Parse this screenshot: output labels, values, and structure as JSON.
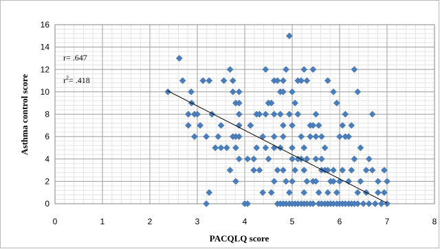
{
  "chart_data": {
    "type": "scatter",
    "xlabel": "PACQLQ score",
    "ylabel": "Asthma control score",
    "xlim": [
      0,
      8
    ],
    "ylim": [
      0,
      16
    ],
    "x_ticks": [
      "0",
      "1",
      "2",
      "3",
      "4",
      "5",
      "6",
      "7",
      "8"
    ],
    "y_ticks": [
      "0",
      "2",
      "4",
      "6",
      "8",
      "10",
      "12",
      "14",
      "16"
    ],
    "grid": true,
    "legend": "none",
    "annotations": {
      "r": "r= .647",
      "r2_prefix": "r",
      "r2_sup": "2",
      "r2_suffix": "= .418"
    },
    "marker_color": "#4a7ebb",
    "trendline": {
      "x": [
        2.37,
        7.0
      ],
      "y": [
        10.1,
        0.05
      ]
    },
    "points": [
      [
        2.38,
        10
      ],
      [
        2.62,
        13
      ],
      [
        2.69,
        11
      ],
      [
        2.81,
        7
      ],
      [
        2.81,
        8
      ],
      [
        2.87,
        10
      ],
      [
        2.88,
        9
      ],
      [
        2.94,
        8
      ],
      [
        2.94,
        6
      ],
      [
        3.0,
        8
      ],
      [
        3.06,
        7
      ],
      [
        3.12,
        11
      ],
      [
        3.19,
        6
      ],
      [
        3.19,
        0
      ],
      [
        3.25,
        1
      ],
      [
        3.25,
        11
      ],
      [
        3.31,
        8
      ],
      [
        3.31,
        8
      ],
      [
        3.38,
        5
      ],
      [
        3.44,
        6
      ],
      [
        3.5,
        7
      ],
      [
        3.5,
        5
      ],
      [
        3.56,
        11
      ],
      [
        3.62,
        5
      ],
      [
        3.69,
        12
      ],
      [
        3.69,
        3
      ],
      [
        3.75,
        6
      ],
      [
        3.75,
        10
      ],
      [
        3.75,
        11
      ],
      [
        3.81,
        2
      ],
      [
        3.81,
        9
      ],
      [
        3.81,
        6
      ],
      [
        3.81,
        5
      ],
      [
        3.88,
        9
      ],
      [
        3.88,
        10
      ],
      [
        3.88,
        4
      ],
      [
        3.88,
        8
      ],
      [
        3.88,
        7
      ],
      [
        3.88,
        6
      ],
      [
        4.0,
        0
      ],
      [
        4.06,
        0
      ],
      [
        4.06,
        4
      ],
      [
        4.12,
        7
      ],
      [
        4.12,
        7
      ],
      [
        4.19,
        4
      ],
      [
        4.19,
        3
      ],
      [
        4.25,
        5
      ],
      [
        4.25,
        8
      ],
      [
        4.31,
        3
      ],
      [
        4.31,
        8
      ],
      [
        4.38,
        6
      ],
      [
        4.38,
        1
      ],
      [
        4.44,
        8
      ],
      [
        4.44,
        12
      ],
      [
        4.44,
        5
      ],
      [
        4.5,
        9
      ],
      [
        4.5,
        4
      ],
      [
        4.56,
        1
      ],
      [
        4.56,
        9
      ],
      [
        4.62,
        11
      ],
      [
        4.62,
        8
      ],
      [
        4.62,
        2
      ],
      [
        4.62,
        6
      ],
      [
        4.62,
        5
      ],
      [
        4.69,
        11
      ],
      [
        4.69,
        3
      ],
      [
        4.69,
        0
      ],
      [
        4.75,
        10
      ],
      [
        4.75,
        8
      ],
      [
        4.75,
        5
      ],
      [
        4.75,
        0
      ],
      [
        4.81,
        11
      ],
      [
        4.81,
        10
      ],
      [
        4.81,
        7
      ],
      [
        4.81,
        6
      ],
      [
        4.81,
        3
      ],
      [
        4.81,
        0
      ],
      [
        4.87,
        12
      ],
      [
        4.87,
        2
      ],
      [
        4.87,
        0
      ],
      [
        4.94,
        15
      ],
      [
        4.94,
        8
      ],
      [
        4.94,
        1
      ],
      [
        4.94,
        0
      ],
      [
        5.0,
        10
      ],
      [
        5.0,
        7
      ],
      [
        5.0,
        5
      ],
      [
        5.0,
        4
      ],
      [
        5.0,
        2
      ],
      [
        5.0,
        0
      ],
      [
        5.06,
        9
      ],
      [
        5.06,
        3
      ],
      [
        5.06,
        0
      ],
      [
        5.12,
        11
      ],
      [
        5.12,
        8
      ],
      [
        5.12,
        4
      ],
      [
        5.12,
        0
      ],
      [
        5.19,
        11
      ],
      [
        5.19,
        6
      ],
      [
        5.19,
        4
      ],
      [
        5.19,
        0
      ],
      [
        5.25,
        12
      ],
      [
        5.25,
        5
      ],
      [
        5.25,
        3
      ],
      [
        5.25,
        1
      ],
      [
        5.25,
        0
      ],
      [
        5.31,
        11
      ],
      [
        5.31,
        4
      ],
      [
        5.31,
        2
      ],
      [
        5.31,
        0
      ],
      [
        5.38,
        7
      ],
      [
        5.38,
        6
      ],
      [
        5.38,
        0
      ],
      [
        5.44,
        12
      ],
      [
        5.44,
        7
      ],
      [
        5.44,
        2
      ],
      [
        5.44,
        0
      ],
      [
        5.5,
        8
      ],
      [
        5.5,
        6
      ],
      [
        5.5,
        4
      ],
      [
        5.5,
        2
      ],
      [
        5.56,
        7
      ],
      [
        5.56,
        1
      ],
      [
        5.56,
        0
      ],
      [
        5.62,
        6
      ],
      [
        5.62,
        4
      ],
      [
        5.62,
        3
      ],
      [
        5.62,
        0
      ],
      [
        5.69,
        5
      ],
      [
        5.69,
        3
      ],
      [
        5.69,
        0
      ],
      [
        5.75,
        11
      ],
      [
        5.75,
        3
      ],
      [
        5.75,
        1
      ],
      [
        5.75,
        0
      ],
      [
        5.81,
        2
      ],
      [
        5.81,
        0
      ],
      [
        5.87,
        10
      ],
      [
        5.87,
        3
      ],
      [
        5.87,
        2
      ],
      [
        5.87,
        0
      ],
      [
        5.94,
        9
      ],
      [
        5.94,
        1
      ],
      [
        5.94,
        0
      ],
      [
        6.0,
        6
      ],
      [
        6.0,
        2
      ],
      [
        6.0,
        0
      ],
      [
        6.06,
        7
      ],
      [
        6.06,
        3
      ],
      [
        6.06,
        0
      ],
      [
        6.12,
        8
      ],
      [
        6.12,
        6
      ],
      [
        6.12,
        0
      ],
      [
        6.19,
        6
      ],
      [
        6.19,
        2
      ],
      [
        6.19,
        0
      ],
      [
        6.25,
        7
      ],
      [
        6.25,
        3
      ],
      [
        6.25,
        0
      ],
      [
        6.31,
        12
      ],
      [
        6.31,
        4
      ],
      [
        6.31,
        0
      ],
      [
        6.38,
        10
      ],
      [
        6.38,
        1
      ],
      [
        6.38,
        0
      ],
      [
        6.44,
        5
      ],
      [
        6.44,
        2
      ],
      [
        6.5,
        0
      ],
      [
        6.56,
        3
      ],
      [
        6.56,
        1
      ],
      [
        6.62,
        4
      ],
      [
        6.62,
        0
      ],
      [
        6.69,
        8
      ],
      [
        6.69,
        3
      ],
      [
        6.75,
        0
      ],
      [
        6.81,
        2
      ],
      [
        6.81,
        1
      ],
      [
        6.88,
        0
      ],
      [
        6.94,
        3
      ],
      [
        6.94,
        1
      ],
      [
        7.0,
        0
      ],
      [
        7.0,
        2
      ]
    ]
  }
}
